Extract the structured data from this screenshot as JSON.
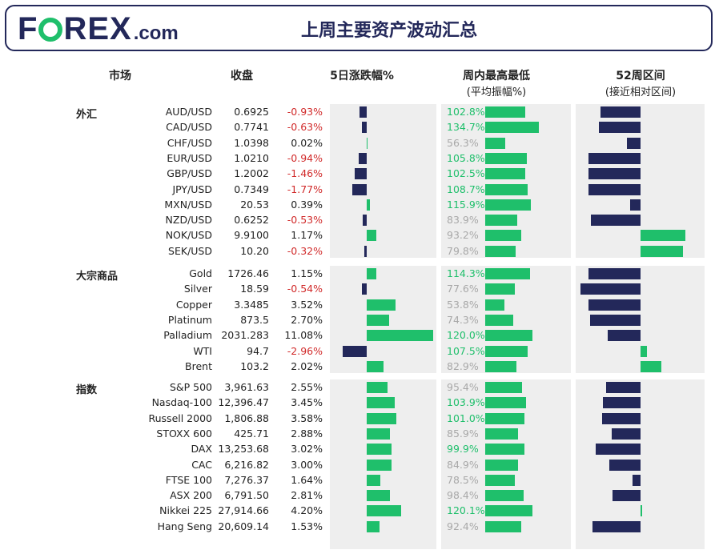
{
  "header": {
    "logo_text": "FOREX.com",
    "title": "上周主要资产波动汇总"
  },
  "columns": {
    "market": "市场",
    "close": "收盘",
    "change": "5日涨跌幅%",
    "range": "周内最高最低",
    "range_sub": "(平均振幅%)",
    "week52": "52周区间",
    "week52_sub": "(接近相对区间)"
  },
  "colors": {
    "positive": "#1fbf6b",
    "negative": "#23285a",
    "neg_text": "#d12a2a",
    "muted": "#a8a8a8"
  },
  "chart_data": {
    "type": "bar",
    "note": "week52_position: relative position within the 52-week range, -1 = at 52-week low, +1 = at 52-week high",
    "groups": [
      {
        "label": "外汇",
        "rows": [
          {
            "name": "AUD/USD",
            "close": "0.6925",
            "change": -0.93,
            "change_label": "-0.93%",
            "range_pct": 102.8,
            "range_label": "102.8%",
            "range_hi": true,
            "week52_position": -0.45
          },
          {
            "name": "CAD/USD",
            "close": "0.7741",
            "change": -0.63,
            "change_label": "-0.63%",
            "range_pct": 134.7,
            "range_label": "134.7%",
            "range_hi": true,
            "week52_position": -0.46
          },
          {
            "name": "CHF/USD",
            "close": "1.0398",
            "change": 0.02,
            "change_label": "0.02%",
            "range_pct": 56.3,
            "range_label": "56.3%",
            "range_hi": false,
            "week52_position": -0.15
          },
          {
            "name": "EUR/USD",
            "close": "1.0210",
            "change": -0.94,
            "change_label": "-0.94%",
            "range_pct": 105.8,
            "range_label": "105.8%",
            "range_hi": true,
            "week52_position": -0.58
          },
          {
            "name": "GBP/USD",
            "close": "1.2002",
            "change": -1.46,
            "change_label": "-1.46%",
            "range_pct": 102.5,
            "range_label": "102.5%",
            "range_hi": true,
            "week52_position": -0.58
          },
          {
            "name": "JPY/USD",
            "close": "0.7349",
            "change": -1.77,
            "change_label": "-1.77%",
            "range_pct": 108.7,
            "range_label": "108.7%",
            "range_hi": true,
            "week52_position": -0.58
          },
          {
            "name": "MXN/USD",
            "close": "20.53",
            "change": 0.39,
            "change_label": "0.39%",
            "range_pct": 115.9,
            "range_label": "115.9%",
            "range_hi": true,
            "week52_position": -0.12
          },
          {
            "name": "NZD/USD",
            "close": "0.6252",
            "change": -0.53,
            "change_label": "-0.53%",
            "range_pct": 83.9,
            "range_label": "83.9%",
            "range_hi": false,
            "week52_position": -0.55
          },
          {
            "name": "NOK/USD",
            "close": "9.9100",
            "change": 1.17,
            "change_label": "1.17%",
            "range_pct": 93.2,
            "range_label": "93.2%",
            "range_hi": false,
            "week52_position": 0.5
          },
          {
            "name": "SEK/USD",
            "close": "10.20",
            "change": -0.32,
            "change_label": "-0.32%",
            "range_pct": 79.8,
            "range_label": "79.8%",
            "range_hi": false,
            "week52_position": 0.47
          }
        ]
      },
      {
        "label": "大宗商品",
        "rows": [
          {
            "name": "Gold",
            "close": "1726.46",
            "change": 1.15,
            "change_label": "1.15%",
            "range_pct": 114.3,
            "range_label": "114.3%",
            "range_hi": true,
            "week52_position": -0.58
          },
          {
            "name": "Silver",
            "close": "18.59",
            "change": -0.54,
            "change_label": "-0.54%",
            "range_pct": 77.6,
            "range_label": "77.6%",
            "range_hi": false,
            "week52_position": -0.67
          },
          {
            "name": "Copper",
            "close": "3.3485",
            "change": 3.52,
            "change_label": "3.52%",
            "range_pct": 53.8,
            "range_label": "53.8%",
            "range_hi": false,
            "week52_position": -0.58
          },
          {
            "name": "Platinum",
            "close": "873.5",
            "change": 2.7,
            "change_label": "2.70%",
            "range_pct": 74.3,
            "range_label": "74.3%",
            "range_hi": false,
            "week52_position": -0.56
          },
          {
            "name": "Palladium",
            "close": "2031.283",
            "change": 11.08,
            "change_label": "11.08%",
            "range_pct": 120.0,
            "range_label": "120.0%",
            "range_hi": true,
            "week52_position": -0.37
          },
          {
            "name": "WTI",
            "close": "94.7",
            "change": -2.96,
            "change_label": "-2.96%",
            "range_pct": 107.5,
            "range_label": "107.5%",
            "range_hi": true,
            "week52_position": 0.07
          },
          {
            "name": "Brent",
            "close": "103.2",
            "change": 2.02,
            "change_label": "2.02%",
            "range_pct": 82.9,
            "range_label": "82.9%",
            "range_hi": false,
            "week52_position": 0.23
          }
        ]
      },
      {
        "label": "指数",
        "rows": [
          {
            "name": "S&P 500",
            "close": "3,961.63",
            "change": 2.55,
            "change_label": "2.55%",
            "range_pct": 95.4,
            "range_label": "95.4%",
            "range_hi": false,
            "week52_position": -0.38
          },
          {
            "name": "Nasdaq-100",
            "close": "12,396.47",
            "change": 3.45,
            "change_label": "3.45%",
            "range_pct": 103.9,
            "range_label": "103.9%",
            "range_hi": true,
            "week52_position": -0.42
          },
          {
            "name": "Russell 2000",
            "close": "1,806.88",
            "change": 3.58,
            "change_label": "3.58%",
            "range_pct": 101.0,
            "range_label": "101.0%",
            "range_hi": true,
            "week52_position": -0.43
          },
          {
            "name": "STOXX 600",
            "close": "425.71",
            "change": 2.88,
            "change_label": "2.88%",
            "range_pct": 85.9,
            "range_label": "85.9%",
            "range_hi": false,
            "week52_position": -0.32
          },
          {
            "name": "DAX",
            "close": "13,253.68",
            "change": 3.02,
            "change_label": "3.02%",
            "range_pct": 99.9,
            "range_label": "99.9%",
            "range_hi": true,
            "week52_position": -0.5
          },
          {
            "name": "CAC",
            "close": "6,216.82",
            "change": 3.0,
            "change_label": "3.00%",
            "range_pct": 84.9,
            "range_label": "84.9%",
            "range_hi": false,
            "week52_position": -0.35
          },
          {
            "name": "FTSE 100",
            "close": "7,276.37",
            "change": 1.64,
            "change_label": "1.64%",
            "range_pct": 78.5,
            "range_label": "78.5%",
            "range_hi": false,
            "week52_position": -0.09
          },
          {
            "name": "ASX 200",
            "close": "6,791.50",
            "change": 2.81,
            "change_label": "2.81%",
            "range_pct": 98.4,
            "range_label": "98.4%",
            "range_hi": false,
            "week52_position": -0.31
          },
          {
            "name": "Nikkei 225",
            "close": "27,914.66",
            "change": 4.2,
            "change_label": "4.20%",
            "range_pct": 120.1,
            "range_label": "120.1%",
            "range_hi": true,
            "week52_position": 0.02
          },
          {
            "name": "Hang Seng",
            "close": "20,609.14",
            "change": 1.53,
            "change_label": "1.53%",
            "range_pct": 92.4,
            "range_label": "92.4%",
            "range_hi": false,
            "week52_position": -0.54
          }
        ]
      }
    ]
  }
}
